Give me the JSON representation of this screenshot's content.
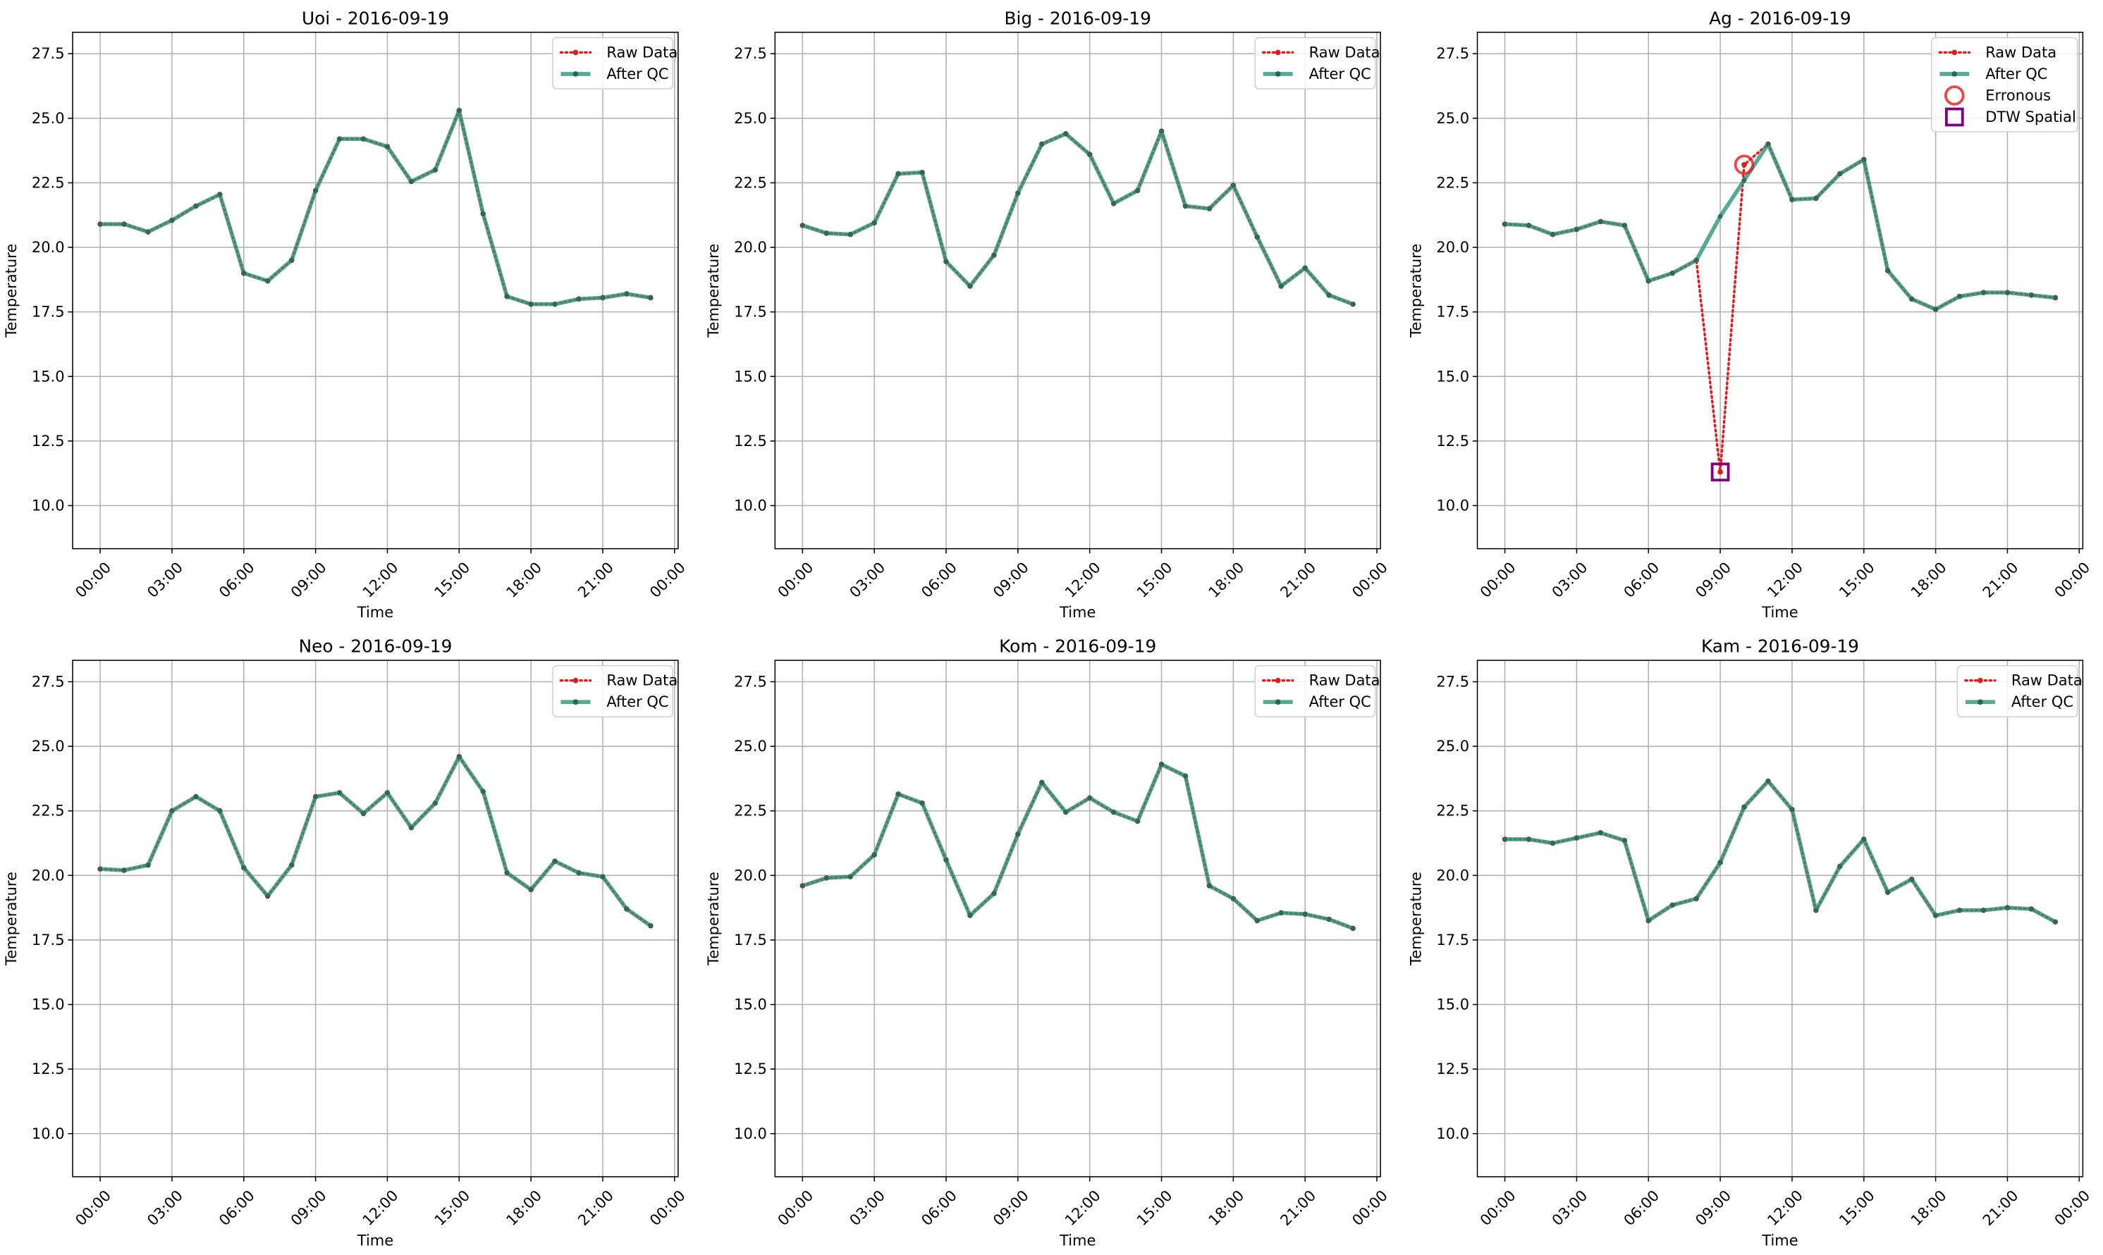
{
  "chart_data": [
    {
      "type": "line",
      "title": "Uoi - 2016-09-19",
      "xlabel": "Time",
      "ylabel": "Temperature",
      "x": [
        0,
        1,
        2,
        3,
        4,
        5,
        6,
        7,
        8,
        9,
        10,
        11,
        12,
        13,
        14,
        15,
        16,
        17,
        18,
        19,
        20,
        21,
        22,
        23
      ],
      "xlim": [
        -1.15,
        24.15
      ],
      "xticks": [
        {
          "value": 0,
          "label": "00:00"
        },
        {
          "value": 3,
          "label": "03:00"
        },
        {
          "value": 6,
          "label": "06:00"
        },
        {
          "value": 9,
          "label": "09:00"
        },
        {
          "value": 12,
          "label": "12:00"
        },
        {
          "value": 15,
          "label": "15:00"
        },
        {
          "value": 18,
          "label": "18:00"
        },
        {
          "value": 21,
          "label": "21:00"
        },
        {
          "value": 24,
          "label": "00:00"
        }
      ],
      "ylim": [
        8.33,
        28.33
      ],
      "yticks": [
        {
          "value": 10,
          "label": "10.0"
        },
        12.5,
        {
          "value": 15,
          "label": "15.0"
        },
        17.5,
        {
          "value": 20,
          "label": "20.0"
        },
        22.5,
        {
          "value": 25,
          "label": "25.0"
        },
        27.5
      ],
      "grid": true,
      "legend": "upper right",
      "series": [
        {
          "name": "Raw Data",
          "color": "#e41a1c",
          "linestyle": "dotted",
          "values": [
            20.9,
            20.9,
            20.6,
            21.05,
            21.6,
            22.05,
            19.0,
            18.7,
            19.5,
            22.2,
            24.2,
            24.2,
            23.9,
            22.55,
            23.0,
            25.3,
            21.3,
            18.1,
            17.8,
            17.8,
            18.0,
            18.05,
            18.2,
            18.05
          ]
        },
        {
          "name": "After QC",
          "color": "#2e9677",
          "linestyle": "solid",
          "values": [
            20.9,
            20.9,
            20.6,
            21.05,
            21.6,
            22.05,
            19.0,
            18.7,
            19.5,
            22.2,
            24.2,
            24.2,
            23.9,
            22.55,
            23.0,
            25.3,
            21.3,
            18.1,
            17.8,
            17.8,
            18.0,
            18.05,
            18.2,
            18.05
          ]
        }
      ]
    },
    {
      "type": "line",
      "title": "Big - 2016-09-19",
      "xlabel": "Time",
      "ylabel": "Temperature",
      "x": [
        0,
        1,
        2,
        3,
        4,
        5,
        6,
        7,
        8,
        9,
        10,
        11,
        12,
        13,
        14,
        15,
        16,
        17,
        18,
        19,
        20,
        21,
        22,
        23
      ],
      "xlim": [
        -1.15,
        24.15
      ],
      "xticks": [
        {
          "value": 0,
          "label": "00:00"
        },
        {
          "value": 3,
          "label": "03:00"
        },
        {
          "value": 6,
          "label": "06:00"
        },
        {
          "value": 9,
          "label": "09:00"
        },
        {
          "value": 12,
          "label": "12:00"
        },
        {
          "value": 15,
          "label": "15:00"
        },
        {
          "value": 18,
          "label": "18:00"
        },
        {
          "value": 21,
          "label": "21:00"
        },
        {
          "value": 24,
          "label": "00:00"
        }
      ],
      "ylim": [
        8.33,
        28.33
      ],
      "yticks": [
        {
          "value": 10,
          "label": "10.0"
        },
        12.5,
        {
          "value": 15,
          "label": "15.0"
        },
        17.5,
        {
          "value": 20,
          "label": "20.0"
        },
        22.5,
        {
          "value": 25,
          "label": "25.0"
        },
        27.5
      ],
      "grid": true,
      "legend": "upper right",
      "series": [
        {
          "name": "Raw Data",
          "color": "#e41a1c",
          "linestyle": "dotted",
          "values": [
            20.85,
            20.55,
            20.5,
            20.95,
            22.85,
            22.9,
            19.45,
            18.5,
            19.7,
            22.1,
            24.0,
            24.4,
            23.6,
            21.7,
            22.2,
            24.5,
            21.6,
            21.5,
            22.4,
            20.4,
            18.5,
            19.2,
            18.15,
            17.8
          ]
        },
        {
          "name": "After QC",
          "color": "#2e9677",
          "linestyle": "solid",
          "values": [
            20.85,
            20.55,
            20.5,
            20.95,
            22.85,
            22.9,
            19.45,
            18.5,
            19.7,
            22.1,
            24.0,
            24.4,
            23.6,
            21.7,
            22.2,
            24.5,
            21.6,
            21.5,
            22.4,
            20.4,
            18.5,
            19.2,
            18.15,
            17.8
          ]
        }
      ]
    },
    {
      "type": "line",
      "title": "Ag - 2016-09-19",
      "xlabel": "Time",
      "ylabel": "Temperature",
      "x": [
        0,
        1,
        2,
        3,
        4,
        5,
        6,
        7,
        8,
        9,
        10,
        11,
        12,
        13,
        14,
        15,
        16,
        17,
        18,
        19,
        20,
        21,
        22,
        23
      ],
      "xlim": [
        -1.15,
        24.15
      ],
      "xticks": [
        {
          "value": 0,
          "label": "00:00"
        },
        {
          "value": 3,
          "label": "03:00"
        },
        {
          "value": 6,
          "label": "06:00"
        },
        {
          "value": 9,
          "label": "09:00"
        },
        {
          "value": 12,
          "label": "12:00"
        },
        {
          "value": 15,
          "label": "15:00"
        },
        {
          "value": 18,
          "label": "18:00"
        },
        {
          "value": 21,
          "label": "21:00"
        },
        {
          "value": 24,
          "label": "00:00"
        }
      ],
      "ylim": [
        8.33,
        28.33
      ],
      "yticks": [
        {
          "value": 10,
          "label": "10.0"
        },
        12.5,
        {
          "value": 15,
          "label": "15.0"
        },
        17.5,
        {
          "value": 20,
          "label": "20.0"
        },
        22.5,
        {
          "value": 25,
          "label": "25.0"
        },
        27.5
      ],
      "grid": true,
      "legend": "upper right",
      "series": [
        {
          "name": "Raw Data",
          "color": "#e41a1c",
          "linestyle": "dotted",
          "values": [
            20.9,
            20.85,
            20.5,
            20.7,
            21.0,
            20.85,
            18.7,
            19.0,
            19.5,
            11.3,
            23.2,
            24.0,
            21.85,
            21.9,
            22.85,
            23.4,
            19.1,
            18.0,
            17.6,
            18.1,
            18.25,
            18.25,
            18.15,
            18.05
          ]
        },
        {
          "name": "After QC",
          "color": "#2e9677",
          "linestyle": "solid",
          "values": [
            20.9,
            20.85,
            20.5,
            20.7,
            21.0,
            20.85,
            18.7,
            19.0,
            19.5,
            21.2,
            22.6,
            24.0,
            21.85,
            21.9,
            22.85,
            23.4,
            19.1,
            18.0,
            17.6,
            18.1,
            18.25,
            18.25,
            18.15,
            18.05
          ]
        },
        {
          "name": "Erronous",
          "color": "#e41a1c",
          "marker": "circle",
          "x": [
            10
          ],
          "values": [
            23.2
          ]
        },
        {
          "name": "DTW Spatial",
          "color": "#800080",
          "marker": "square",
          "x": [
            9
          ],
          "values": [
            11.3
          ]
        }
      ]
    },
    {
      "type": "line",
      "title": "Neo - 2016-09-19",
      "xlabel": "Time",
      "ylabel": "Temperature",
      "x": [
        0,
        1,
        2,
        3,
        4,
        5,
        6,
        7,
        8,
        9,
        10,
        11,
        12,
        13,
        14,
        15,
        16,
        17,
        18,
        19,
        20,
        21,
        22,
        23
      ],
      "xlim": [
        -1.15,
        24.15
      ],
      "xticks": [
        {
          "value": 0,
          "label": "00:00"
        },
        {
          "value": 3,
          "label": "03:00"
        },
        {
          "value": 6,
          "label": "06:00"
        },
        {
          "value": 9,
          "label": "09:00"
        },
        {
          "value": 12,
          "label": "12:00"
        },
        {
          "value": 15,
          "label": "15:00"
        },
        {
          "value": 18,
          "label": "18:00"
        },
        {
          "value": 21,
          "label": "21:00"
        },
        {
          "value": 24,
          "label": "00:00"
        }
      ],
      "ylim": [
        8.33,
        28.33
      ],
      "yticks": [
        {
          "value": 10,
          "label": "10.0"
        },
        12.5,
        {
          "value": 15,
          "label": "15.0"
        },
        17.5,
        {
          "value": 20,
          "label": "20.0"
        },
        22.5,
        {
          "value": 25,
          "label": "25.0"
        },
        27.5
      ],
      "grid": true,
      "legend": "upper right",
      "series": [
        {
          "name": "Raw Data",
          "color": "#e41a1c",
          "linestyle": "dotted",
          "values": [
            20.25,
            20.2,
            20.4,
            22.5,
            23.05,
            22.5,
            20.3,
            19.2,
            20.4,
            23.05,
            23.2,
            22.4,
            23.2,
            21.85,
            22.8,
            24.6,
            23.25,
            20.1,
            19.45,
            20.55,
            20.1,
            19.95,
            18.7,
            18.05
          ]
        },
        {
          "name": "After QC",
          "color": "#2e9677",
          "linestyle": "solid",
          "values": [
            20.25,
            20.2,
            20.4,
            22.5,
            23.05,
            22.5,
            20.3,
            19.2,
            20.4,
            23.05,
            23.2,
            22.4,
            23.2,
            21.85,
            22.8,
            24.6,
            23.25,
            20.1,
            19.45,
            20.55,
            20.1,
            19.95,
            18.7,
            18.05
          ]
        }
      ]
    },
    {
      "type": "line",
      "title": "Kom - 2016-09-19",
      "xlabel": "Time",
      "ylabel": "Temperature",
      "x": [
        0,
        1,
        2,
        3,
        4,
        5,
        6,
        7,
        8,
        9,
        10,
        11,
        12,
        13,
        14,
        15,
        16,
        17,
        18,
        19,
        20,
        21,
        22,
        23
      ],
      "xlim": [
        -1.15,
        24.15
      ],
      "xticks": [
        {
          "value": 0,
          "label": "00:00"
        },
        {
          "value": 3,
          "label": "03:00"
        },
        {
          "value": 6,
          "label": "06:00"
        },
        {
          "value": 9,
          "label": "09:00"
        },
        {
          "value": 12,
          "label": "12:00"
        },
        {
          "value": 15,
          "label": "15:00"
        },
        {
          "value": 18,
          "label": "18:00"
        },
        {
          "value": 21,
          "label": "21:00"
        },
        {
          "value": 24,
          "label": "00:00"
        }
      ],
      "ylim": [
        8.33,
        28.33
      ],
      "yticks": [
        {
          "value": 10,
          "label": "10.0"
        },
        12.5,
        {
          "value": 15,
          "label": "15.0"
        },
        17.5,
        {
          "value": 20,
          "label": "20.0"
        },
        22.5,
        {
          "value": 25,
          "label": "25.0"
        },
        27.5
      ],
      "grid": true,
      "legend": "upper right",
      "series": [
        {
          "name": "Raw Data",
          "color": "#e41a1c",
          "linestyle": "dotted",
          "values": [
            19.6,
            19.9,
            19.95,
            20.8,
            23.15,
            22.8,
            20.6,
            18.45,
            19.3,
            21.6,
            23.6,
            22.45,
            23.0,
            22.45,
            22.1,
            24.3,
            23.85,
            19.6,
            19.1,
            18.25,
            18.55,
            18.5,
            18.3,
            17.95
          ]
        },
        {
          "name": "After QC",
          "color": "#2e9677",
          "linestyle": "solid",
          "values": [
            19.6,
            19.9,
            19.95,
            20.8,
            23.15,
            22.8,
            20.6,
            18.45,
            19.3,
            21.6,
            23.6,
            22.45,
            23.0,
            22.45,
            22.1,
            24.3,
            23.85,
            19.6,
            19.1,
            18.25,
            18.55,
            18.5,
            18.3,
            17.95
          ]
        }
      ]
    },
    {
      "type": "line",
      "title": "Kam - 2016-09-19",
      "xlabel": "Time",
      "ylabel": "Temperature",
      "x": [
        0,
        1,
        2,
        3,
        4,
        5,
        6,
        7,
        8,
        9,
        10,
        11,
        12,
        13,
        14,
        15,
        16,
        17,
        18,
        19,
        20,
        21,
        22,
        23
      ],
      "xlim": [
        -1.15,
        24.15
      ],
      "xticks": [
        {
          "value": 0,
          "label": "00:00"
        },
        {
          "value": 3,
          "label": "03:00"
        },
        {
          "value": 6,
          "label": "06:00"
        },
        {
          "value": 9,
          "label": "09:00"
        },
        {
          "value": 12,
          "label": "12:00"
        },
        {
          "value": 15,
          "label": "15:00"
        },
        {
          "value": 18,
          "label": "18:00"
        },
        {
          "value": 21,
          "label": "21:00"
        },
        {
          "value": 24,
          "label": "00:00"
        }
      ],
      "ylim": [
        8.33,
        28.33
      ],
      "yticks": [
        {
          "value": 10,
          "label": "10.0"
        },
        12.5,
        {
          "value": 15,
          "label": "15.0"
        },
        17.5,
        {
          "value": 20,
          "label": "20.0"
        },
        22.5,
        {
          "value": 25,
          "label": "25.0"
        },
        27.5
      ],
      "grid": true,
      "legend": "upper right",
      "series": [
        {
          "name": "Raw Data",
          "color": "#e41a1c",
          "linestyle": "dotted",
          "values": [
            21.4,
            21.4,
            21.25,
            21.45,
            21.65,
            21.35,
            18.25,
            18.85,
            19.1,
            20.5,
            22.65,
            23.65,
            22.55,
            18.65,
            20.35,
            21.4,
            19.35,
            19.85,
            18.45,
            18.65,
            18.65,
            18.75,
            18.7,
            18.2
          ]
        },
        {
          "name": "After QC",
          "color": "#2e9677",
          "linestyle": "solid",
          "values": [
            21.4,
            21.4,
            21.25,
            21.45,
            21.65,
            21.35,
            18.25,
            18.85,
            19.1,
            20.5,
            22.65,
            23.65,
            22.55,
            18.65,
            20.35,
            21.4,
            19.35,
            19.85,
            18.45,
            18.65,
            18.65,
            18.75,
            18.7,
            18.2
          ]
        }
      ]
    }
  ]
}
